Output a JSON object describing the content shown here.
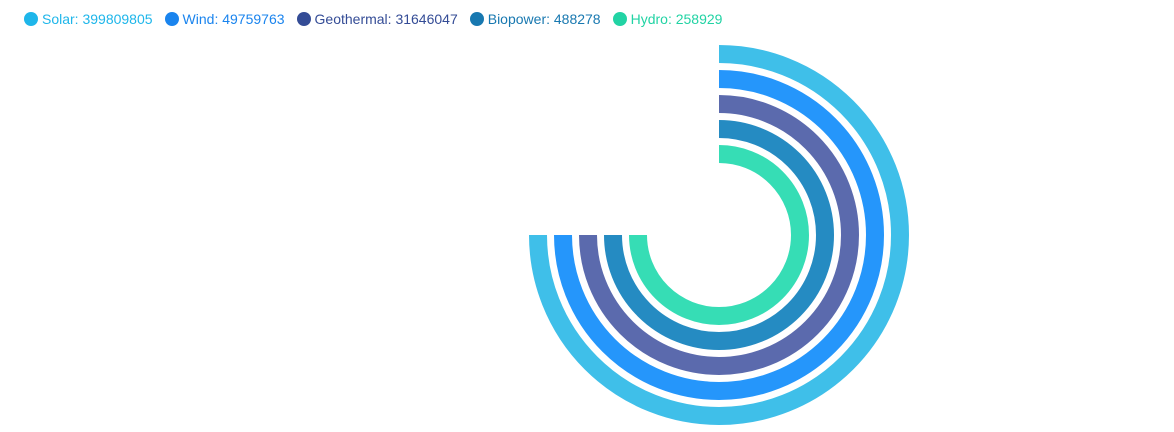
{
  "chart_data": {
    "type": "radial-bar",
    "legend_position": "top-left",
    "series": [
      {
        "name": "Solar",
        "value": 399809805,
        "legend_label": "Solar: 399809805",
        "color": "#3fbfe9",
        "legend_color": "#1eb6ea"
      },
      {
        "name": "Wind",
        "value": 49759763,
        "legend_label": "Wind: 49759763",
        "color": "#2596fb",
        "legend_color": "#1a84ee"
      },
      {
        "name": "Geothermal",
        "value": 31646047,
        "legend_label": "Geothermal: 31646047",
        "color": "#5b6aad",
        "legend_color": "#344c96"
      },
      {
        "name": "Biopower",
        "value": 488278,
        "legend_label": "Biopower: 488278",
        "color": "#258bc2",
        "legend_color": "#1878b0"
      },
      {
        "name": "Hydro",
        "value": 258929,
        "legend_label": "Hydro: 258929",
        "color": "#36ddb5",
        "legend_color": "#22d3a4"
      }
    ],
    "sweep_degrees": 270,
    "start_angle": "12 o'clock, clockwise"
  }
}
